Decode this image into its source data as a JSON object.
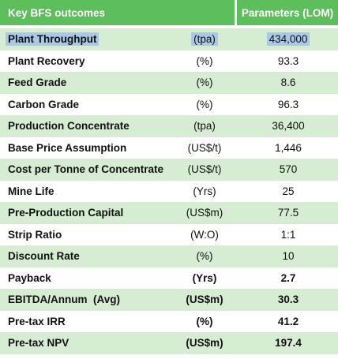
{
  "colors": {
    "header_green": "#5cbf5c",
    "shaded_row": "#d6ecd3",
    "plain_row": "#ffffff",
    "highlight": "#a9c9e6"
  },
  "header": {
    "outcome": "Key BFS outcomes",
    "parameters": "Parameters (LOM)"
  },
  "rows": [
    {
      "label": "Plant Throughput",
      "unit": "(tpa)",
      "value": "434,000"
    },
    {
      "label": "Plant Recovery",
      "unit": "(%)",
      "value": "93.3"
    },
    {
      "label": "Feed Grade",
      "unit": "(%)",
      "value": "8.6"
    },
    {
      "label": "Carbon Grade",
      "unit": "(%)",
      "value": "96.3"
    },
    {
      "label": "Production Concentrate",
      "unit": "(tpa)",
      "value": "36,400"
    },
    {
      "label": "Base Price Assumption",
      "unit": "(US$/t)",
      "value": "1,446"
    },
    {
      "label": "Cost per Tonne of Concentrate",
      "unit": "(US$/t)",
      "value": "570"
    },
    {
      "label": "Mine Life",
      "unit": "(Yrs)",
      "value": "25"
    },
    {
      "label": "Pre-Production Capital",
      "unit": "(US$m)",
      "value": "77.5"
    },
    {
      "label": "Strip Ratio",
      "unit": "(W:O)",
      "value": "1:1"
    },
    {
      "label": "Discount Rate",
      "unit": "(%)",
      "value": "10"
    },
    {
      "label": "Payback",
      "unit": "(Yrs)",
      "value": "2.7"
    },
    {
      "label": "EBITDA/Annum  (Avg)",
      "unit": "(US$m)",
      "value": "30.3"
    },
    {
      "label": "Pre-tax IRR",
      "unit": "(%)",
      "value": "41.2"
    },
    {
      "label": "Pre-tax NPV",
      "unit": "(US$m)",
      "value": "197.4"
    }
  ]
}
